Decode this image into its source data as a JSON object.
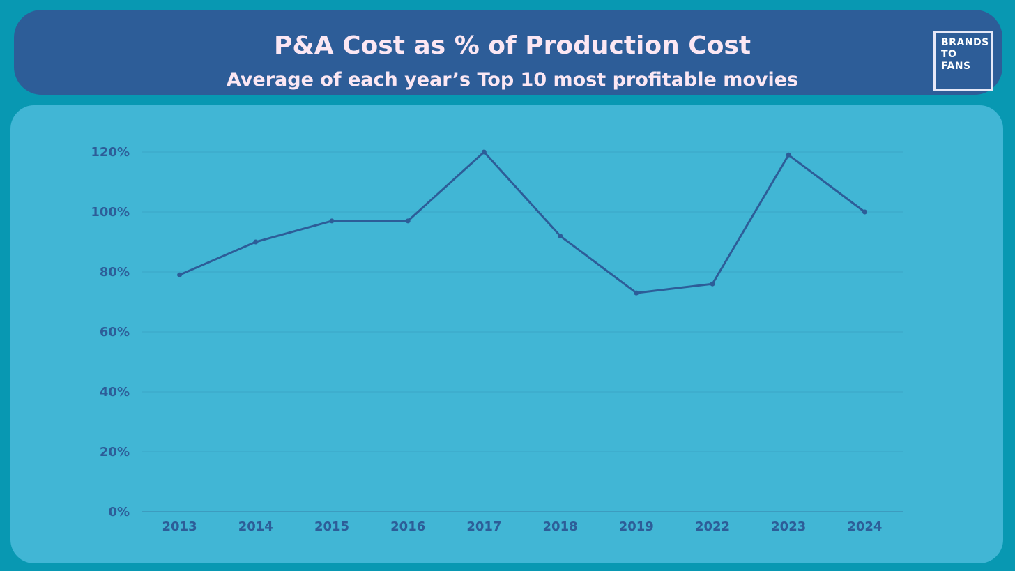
{
  "header": {
    "title": "P&A Cost as % of Production Cost",
    "subtitle": "Average of each year’s Top 10 most profitable movies"
  },
  "logo": {
    "lines": [
      "BRANDS",
      "TO",
      "FANS"
    ]
  },
  "colors": {
    "background": "#0898b2",
    "header": "#2d5d98",
    "panel": "#41b6d5",
    "line": "#2d5d98",
    "title_text": "#fbe7f3"
  },
  "chart_data": {
    "type": "line",
    "categories": [
      "2013",
      "2014",
      "2015",
      "2016",
      "2017",
      "2018",
      "2019",
      "2022",
      "2023",
      "2024"
    ],
    "series": [
      {
        "values": [
          79,
          90,
          97,
          97,
          120,
          92,
          73,
          76,
          119,
          100
        ]
      }
    ],
    "yticks": [
      "0%",
      "20%",
      "40%",
      "60%",
      "80%",
      "100%",
      "120%"
    ],
    "ylim": [
      0,
      120
    ],
    "ytick_step": 20,
    "grid": true,
    "legend": "none"
  }
}
